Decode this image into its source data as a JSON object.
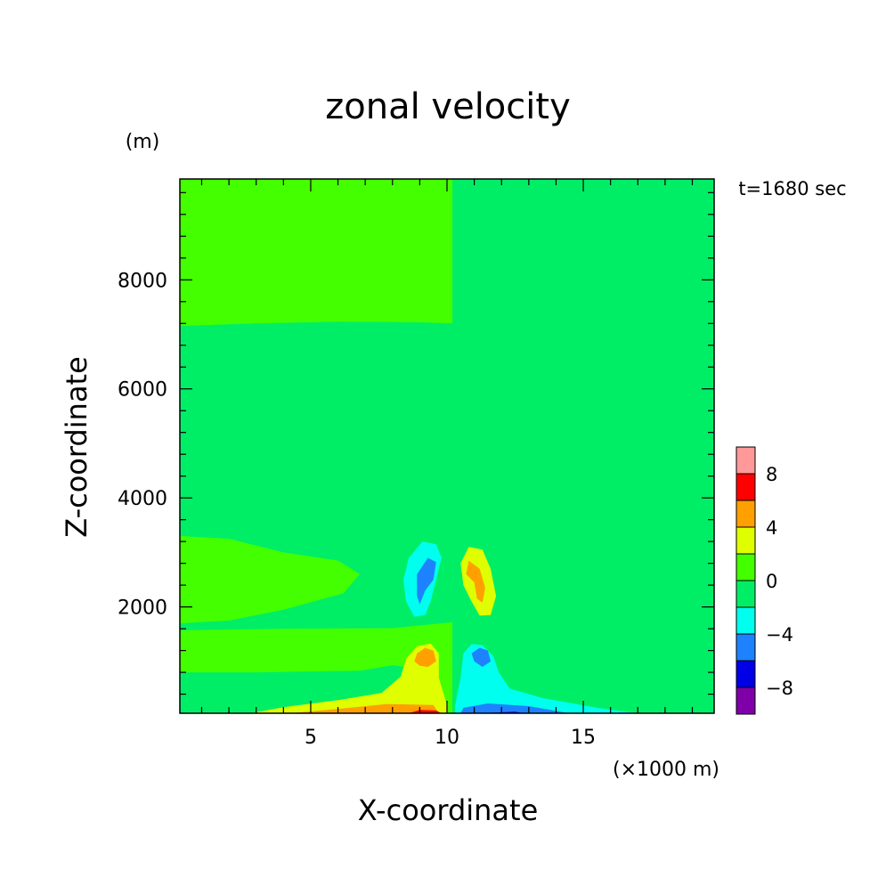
{
  "chart_data": {
    "type": "heatmap",
    "title": "zonal velocity",
    "xlabel": "X-coordinate",
    "ylabel": "Z-coordinate",
    "x_units": "(×1000 m)",
    "y_units": "(m)",
    "time_label": "t=1680 sec",
    "xlim": [
      0.2,
      19.8
    ],
    "ylim": [
      50,
      9850
    ],
    "x_ticks": [
      5,
      10,
      15
    ],
    "y_ticks": [
      2000,
      4000,
      6000,
      8000
    ],
    "colorbar": {
      "levels": [
        -10,
        -8,
        -6,
        -4,
        -2,
        0,
        2,
        4,
        6,
        8,
        10
      ],
      "labels": [
        -8,
        -4,
        0,
        4,
        8
      ],
      "colors": [
        "#7f00a8",
        "#0000e6",
        "#1e82ff",
        "#00ffee",
        "#00ee66",
        "#44ff00",
        "#dfff00",
        "#ffa000",
        "#ff0000",
        "#ff9999"
      ]
    },
    "regions": [
      {
        "name": "upper-left",
        "level": 0,
        "points": [
          [
            0.2,
            7150
          ],
          [
            3,
            7200
          ],
          [
            6,
            7230
          ],
          [
            9,
            7220
          ],
          [
            10.2,
            7200
          ],
          [
            10.2,
            9850
          ],
          [
            0.2,
            9850
          ]
        ]
      },
      {
        "name": "upper-right",
        "level": -2,
        "points": [
          [
            10.2,
            7200
          ],
          [
            12,
            7250
          ],
          [
            15,
            7360
          ],
          [
            18,
            7300
          ],
          [
            19.8,
            7200
          ],
          [
            19.8,
            9850
          ],
          [
            10.2,
            9850
          ]
        ]
      },
      {
        "name": "mid-left",
        "level": -2,
        "points": [
          [
            0.2,
            7150
          ],
          [
            3,
            7200
          ],
          [
            6,
            7230
          ],
          [
            9,
            7220
          ],
          [
            10.2,
            7200
          ],
          [
            10.2,
            1720
          ],
          [
            8,
            1610
          ],
          [
            4,
            1600
          ],
          [
            0.2,
            1570
          ]
        ]
      },
      {
        "name": "mid-right",
        "level": -2,
        "points": [
          [
            10.2,
            7200
          ],
          [
            12,
            7250
          ],
          [
            15,
            7360
          ],
          [
            18,
            7300
          ],
          [
            19.8,
            7200
          ],
          [
            19.8,
            1570
          ],
          [
            16,
            1600
          ],
          [
            12,
            1610
          ],
          [
            10.2,
            1720
          ]
        ]
      },
      {
        "name": "band-left",
        "level": 0,
        "points": [
          [
            0.2,
            3300
          ],
          [
            2,
            3250
          ],
          [
            4,
            3000
          ],
          [
            6,
            2850
          ],
          [
            6.8,
            2600
          ],
          [
            6.2,
            2250
          ],
          [
            4,
            1950
          ],
          [
            2,
            1750
          ],
          [
            0.2,
            1700
          ]
        ]
      },
      {
        "name": "band-right",
        "level": -2,
        "points": [
          [
            19.8,
            3300
          ],
          [
            18,
            3250
          ],
          [
            16,
            3000
          ],
          [
            14,
            2850
          ],
          [
            13.2,
            2600
          ],
          [
            13.8,
            2250
          ],
          [
            16,
            1950
          ],
          [
            18,
            1750
          ],
          [
            19.8,
            1700
          ]
        ]
      },
      {
        "name": "lower-left",
        "level": 0,
        "points": [
          [
            0.2,
            1570
          ],
          [
            4,
            1600
          ],
          [
            8,
            1610
          ],
          [
            10.2,
            1720
          ],
          [
            10.2,
            50
          ],
          [
            0.2,
            50
          ]
        ]
      },
      {
        "name": "lower-right",
        "level": -2,
        "points": [
          [
            10.2,
            1720
          ],
          [
            12,
            1610
          ],
          [
            16,
            1600
          ],
          [
            19.8,
            1570
          ],
          [
            19.8,
            50
          ],
          [
            10.2,
            50
          ]
        ]
      },
      {
        "name": "strip-left-low",
        "level": -2,
        "points": [
          [
            0.2,
            800
          ],
          [
            3,
            800
          ],
          [
            6.8,
            830
          ],
          [
            8,
            930
          ],
          [
            8.5,
            900
          ],
          [
            8.4,
            500
          ],
          [
            6,
            350
          ],
          [
            3,
            200
          ],
          [
            0.2,
            150
          ]
        ]
      },
      {
        "name": "strip-right-low",
        "level": -2,
        "points": [
          [
            19.8,
            800
          ],
          [
            17,
            800
          ],
          [
            13.2,
            830
          ],
          [
            12,
            930
          ],
          [
            11.5,
            900
          ],
          [
            11.6,
            500
          ],
          [
            14,
            350
          ],
          [
            17,
            200
          ],
          [
            19.8,
            150
          ]
        ]
      },
      {
        "name": "gap-left",
        "level": -2,
        "points": [
          [
            0.2,
            150
          ],
          [
            3,
            200
          ],
          [
            6,
            350
          ],
          [
            8.4,
            500
          ],
          [
            8.4,
            50
          ],
          [
            0.2,
            50
          ]
        ]
      },
      {
        "name": "gap-right",
        "level": -2,
        "points": [
          [
            19.8,
            150
          ],
          [
            17,
            200
          ],
          [
            14,
            350
          ],
          [
            11.6,
            500
          ],
          [
            11.6,
            50
          ],
          [
            19.8,
            50
          ]
        ]
      },
      {
        "name": "jet-left-yellow",
        "level": 2,
        "points": [
          [
            2.8,
            50
          ],
          [
            4,
            160
          ],
          [
            6,
            290
          ],
          [
            7.6,
            420
          ],
          [
            8.3,
            720
          ],
          [
            8.5,
            1050
          ],
          [
            8.9,
            1280
          ],
          [
            9.4,
            1330
          ],
          [
            9.7,
            1150
          ],
          [
            9.7,
            700
          ],
          [
            10.0,
            200
          ],
          [
            10.0,
            50
          ]
        ]
      },
      {
        "name": "jet-left-orange",
        "level": 4,
        "points": [
          [
            4.2,
            50
          ],
          [
            6,
            130
          ],
          [
            7.8,
            220
          ],
          [
            9.5,
            200
          ],
          [
            9.7,
            50
          ]
        ]
      },
      {
        "name": "core-left-orange",
        "level": 4,
        "points": [
          [
            8.8,
            1000
          ],
          [
            8.9,
            1150
          ],
          [
            9.2,
            1250
          ],
          [
            9.5,
            1200
          ],
          [
            9.6,
            1000
          ],
          [
            9.3,
            900
          ],
          [
            9.0,
            920
          ]
        ]
      },
      {
        "name": "jet-left-red",
        "level": 6,
        "points": [
          [
            8.6,
            50
          ],
          [
            9.0,
            110
          ],
          [
            9.6,
            100
          ],
          [
            9.8,
            50
          ]
        ]
      },
      {
        "name": "blob-left-cyan",
        "level": -4,
        "points": [
          [
            9.1,
            3200
          ],
          [
            9.6,
            3150
          ],
          [
            9.8,
            2900
          ],
          [
            9.6,
            2500
          ],
          [
            9.4,
            2100
          ],
          [
            9.2,
            1850
          ],
          [
            8.8,
            1820
          ],
          [
            8.5,
            2100
          ],
          [
            8.4,
            2500
          ],
          [
            8.6,
            2900
          ]
        ]
      },
      {
        "name": "blob-left-blue",
        "level": -6,
        "points": [
          [
            9.3,
            2900
          ],
          [
            9.6,
            2820
          ],
          [
            9.5,
            2500
          ],
          [
            9.2,
            2300
          ],
          [
            9.0,
            2050
          ],
          [
            8.9,
            2200
          ],
          [
            8.9,
            2600
          ]
        ]
      },
      {
        "name": "blob-right-yellow",
        "level": 2,
        "points": [
          [
            10.8,
            3100
          ],
          [
            11.3,
            3050
          ],
          [
            11.6,
            2700
          ],
          [
            11.8,
            2200
          ],
          [
            11.6,
            1850
          ],
          [
            11.2,
            1840
          ],
          [
            10.9,
            2100
          ],
          [
            10.6,
            2400
          ],
          [
            10.5,
            2800
          ]
        ]
      },
      {
        "name": "blob-right-orange",
        "level": 4,
        "points": [
          [
            10.8,
            2850
          ],
          [
            11.2,
            2700
          ],
          [
            11.4,
            2350
          ],
          [
            11.3,
            2080
          ],
          [
            11.1,
            2150
          ],
          [
            11.0,
            2450
          ],
          [
            10.7,
            2600
          ]
        ]
      },
      {
        "name": "jet-right-cyan",
        "level": -4,
        "points": [
          [
            17,
            50
          ],
          [
            15.5,
            150
          ],
          [
            13.5,
            330
          ],
          [
            12.3,
            500
          ],
          [
            11.9,
            800
          ],
          [
            11.7,
            1100
          ],
          [
            11.3,
            1300
          ],
          [
            10.9,
            1320
          ],
          [
            10.6,
            1150
          ],
          [
            10.5,
            700
          ],
          [
            10.3,
            200
          ],
          [
            10.3,
            50
          ]
        ]
      },
      {
        "name": "core-right-blue",
        "level": -6,
        "points": [
          [
            11.0,
            1000
          ],
          [
            10.9,
            1150
          ],
          [
            11.2,
            1250
          ],
          [
            11.5,
            1200
          ],
          [
            11.6,
            1000
          ],
          [
            11.3,
            900
          ]
        ]
      },
      {
        "name": "jet-right-blue",
        "level": -6,
        "points": [
          [
            14.5,
            50
          ],
          [
            13,
            180
          ],
          [
            11.5,
            230
          ],
          [
            10.6,
            150
          ],
          [
            10.5,
            50
          ]
        ]
      },
      {
        "name": "jet-right-darkblue",
        "level": -8,
        "points": [
          [
            11.2,
            50
          ],
          [
            12.5,
            80
          ],
          [
            12.8,
            50
          ]
        ]
      }
    ]
  }
}
